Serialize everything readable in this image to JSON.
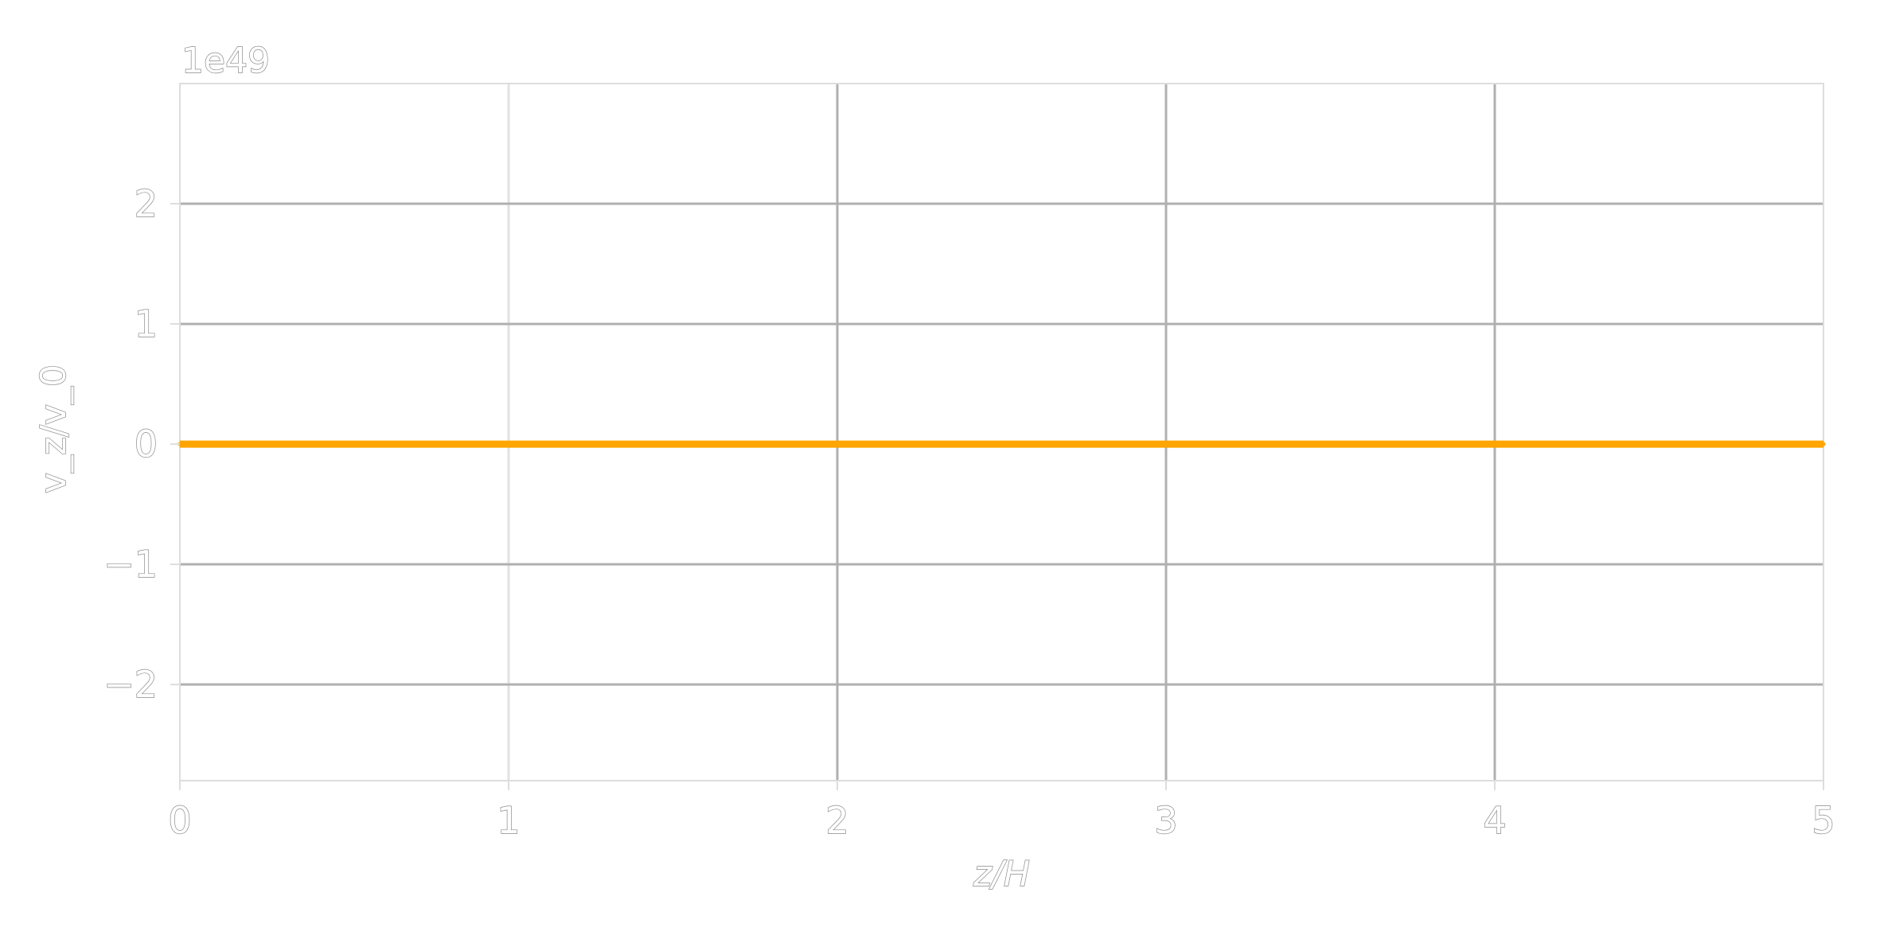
{
  "chart_data": {
    "type": "line",
    "title": "",
    "xlabel": "z/H",
    "ylabel": "v_z/v_0",
    "y_offset_text": "1e49",
    "xlim": [
      0,
      5
    ],
    "ylim": [
      -2.8,
      3.0
    ],
    "x_ticks": [
      0,
      1,
      2,
      3,
      4,
      5
    ],
    "x_tick_labels": [
      "0",
      "1",
      "2",
      "3",
      "4",
      "5"
    ],
    "y_ticks": [
      -2,
      -1,
      0,
      1,
      2
    ],
    "y_tick_labels": [
      "−2",
      "−1",
      "0",
      "1",
      "2"
    ],
    "grid": true,
    "legend": "none",
    "series": [
      {
        "color": "#ffa500",
        "x": [
          0,
          0.5,
          1,
          1.5,
          2,
          2.5,
          3,
          3.5,
          4,
          4.5,
          5
        ],
        "y": [
          0,
          0,
          0,
          0,
          0,
          0,
          0,
          0,
          0,
          0,
          0
        ]
      }
    ],
    "colors": {
      "grid": "#b0b0b0",
      "frame": "#dddddd",
      "text_outline": "#8a8a8a"
    }
  }
}
